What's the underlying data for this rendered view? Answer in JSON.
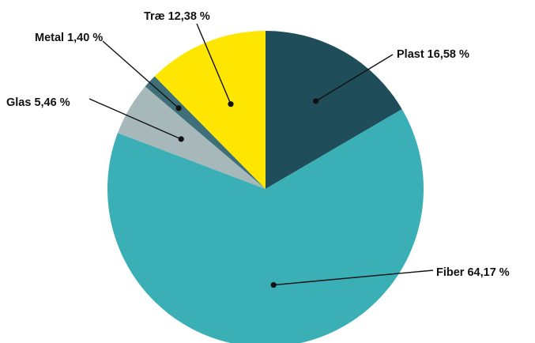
{
  "chart_data": {
    "type": "pie",
    "slices": [
      {
        "name": "Plast",
        "value": 16.58,
        "label": "Plast 16,58 %",
        "color": "#1f4e5a"
      },
      {
        "name": "Fiber",
        "value": 64.17,
        "label": "Fiber 64,17 %",
        "color": "#3aafb6"
      },
      {
        "name": "Glas",
        "value": 5.46,
        "label": "Glas 5,46 %",
        "color": "#a7b8bb"
      },
      {
        "name": "Metal",
        "value": 1.4,
        "label": "Metal 1,40 %",
        "color": "#3f6f78"
      },
      {
        "name": "Træ",
        "value": 12.38,
        "label": "Træ 12,38 %",
        "color": "#ffe600"
      }
    ],
    "start": "top",
    "direction": "clockwise"
  }
}
